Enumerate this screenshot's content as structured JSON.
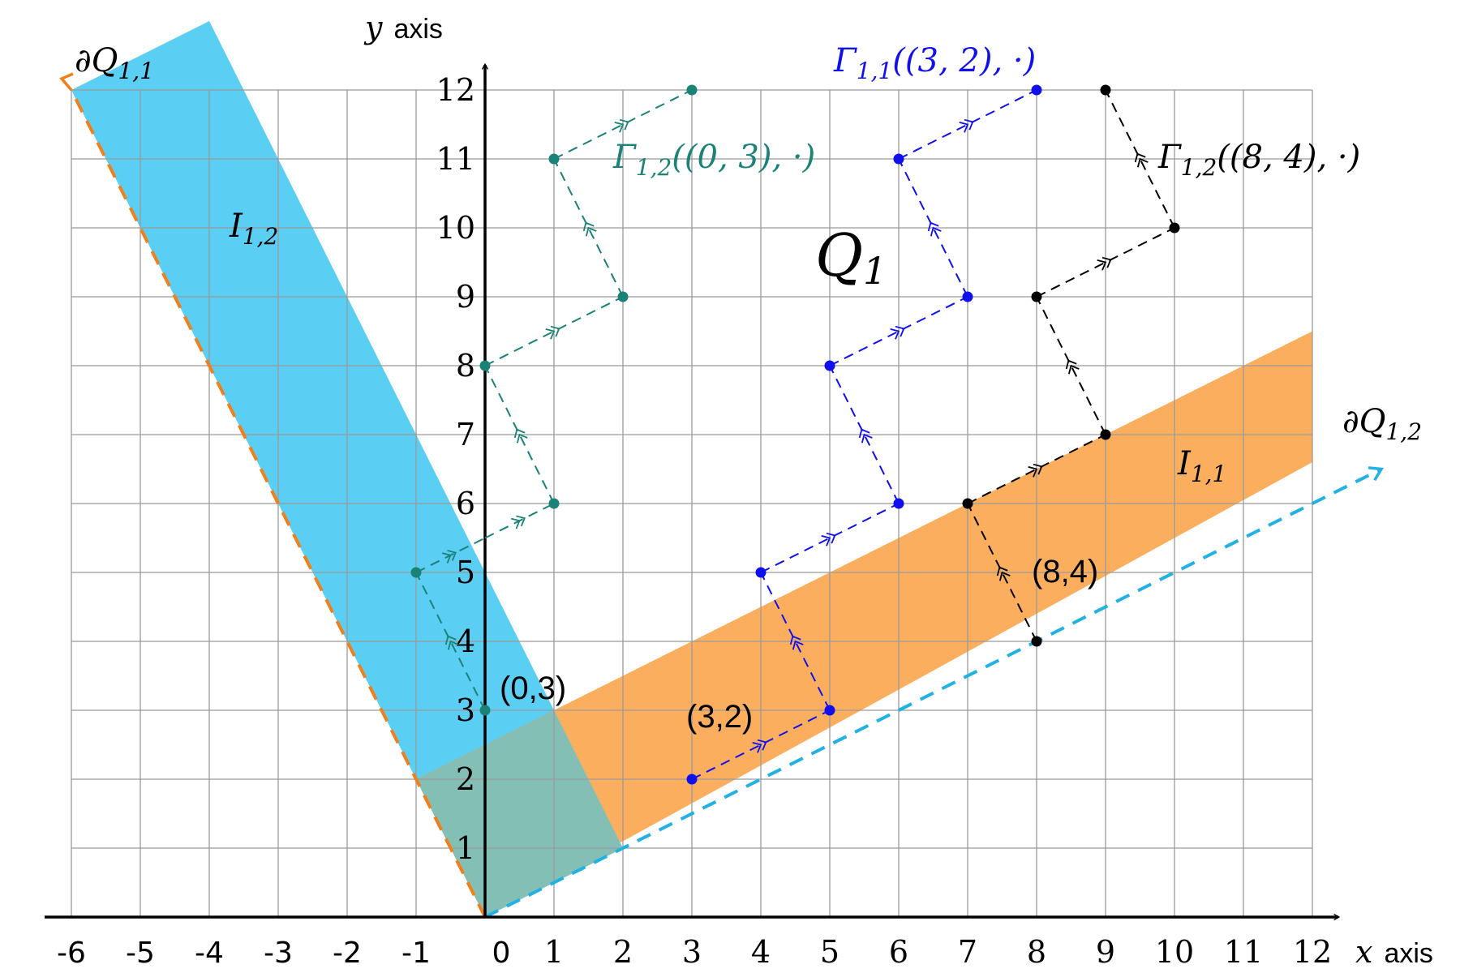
{
  "labels": {
    "x_axis_var": "x",
    "x_axis_word": "axis",
    "y_axis_var": "y",
    "y_axis_word": "axis",
    "q1": "Q",
    "q1_sub": "1",
    "i11": "I",
    "i11_sub": "1,1",
    "i12": "I",
    "i12_sub": "1,2",
    "dq11": "∂Q",
    "dq11_sub": "1,1",
    "dq12": "∂Q",
    "dq12_sub": "1,2",
    "gamma_teal": "Γ",
    "gamma_teal_sub": "1,2",
    "gamma_teal_arg": "((0, 3), ·)",
    "gamma_blue": "Γ",
    "gamma_blue_sub": "1,1",
    "gamma_blue_arg": "((3, 2), ·)",
    "gamma_black": "Γ",
    "gamma_black_sub": "1,2",
    "gamma_black_arg": "((8, 4), ·)",
    "pt_03": "(0,3)",
    "pt_32": "(3,2)",
    "pt_84": "(8,4)"
  },
  "chart_data": {
    "type": "diagram",
    "x_range": [
      -6,
      12
    ],
    "y_range": [
      0,
      12
    ],
    "x_ticks": [
      "-6",
      "-5",
      "-4",
      "-3",
      "-2",
      "-1",
      "0",
      "1",
      "2",
      "3",
      "4",
      "5",
      "6",
      "7",
      "8",
      "9",
      "10",
      "11",
      "12"
    ],
    "y_ticks": [
      "1",
      "2",
      "3",
      "4",
      "5",
      "6",
      "7",
      "8",
      "9",
      "10",
      "11",
      "12"
    ],
    "regions": {
      "I_1_2": {
        "color": "#5BCEF3",
        "points": [
          [
            0,
            0
          ],
          [
            -6,
            12
          ],
          [
            -4,
            13
          ],
          [
            2,
            1
          ]
        ]
      },
      "I_1_1": {
        "color": "#FCAE5F",
        "points": [
          [
            0,
            0
          ],
          [
            12,
            6.6
          ],
          [
            12,
            8.5
          ],
          [
            -1,
            2
          ]
        ]
      },
      "overlap": {
        "color": "#84BFB6",
        "points": [
          [
            0,
            0
          ],
          [
            2,
            1
          ],
          [
            1,
            3
          ],
          [
            -1,
            2
          ]
        ]
      }
    },
    "boundaries": {
      "dQ_1_1": {
        "color": "#F07F1C",
        "from": [
          0,
          0
        ],
        "to": [
          -6,
          12
        ]
      },
      "dQ_1_2": {
        "color": "#22B1E3",
        "from": [
          0,
          0
        ],
        "to": [
          13,
          6.5
        ]
      }
    },
    "paths": [
      {
        "color": "#1A8276",
        "points": [
          [
            0,
            3
          ],
          [
            -1,
            5
          ],
          [
            0,
            5.5
          ],
          [
            1,
            6
          ],
          [
            0,
            8
          ],
          [
            2,
            9
          ],
          [
            1,
            11
          ],
          [
            3,
            12
          ]
        ]
      },
      {
        "color": "#1010EE",
        "points": [
          [
            3,
            2
          ],
          [
            5,
            3
          ],
          [
            4,
            5
          ],
          [
            6,
            6
          ],
          [
            5,
            8
          ],
          [
            7,
            9
          ],
          [
            6,
            11
          ],
          [
            8,
            12
          ]
        ]
      },
      {
        "color": "#000000",
        "points": [
          [
            8,
            4
          ],
          [
            7,
            6
          ],
          [
            9,
            7
          ],
          [
            8,
            9
          ],
          [
            10,
            10
          ],
          [
            9,
            12
          ]
        ]
      }
    ]
  }
}
